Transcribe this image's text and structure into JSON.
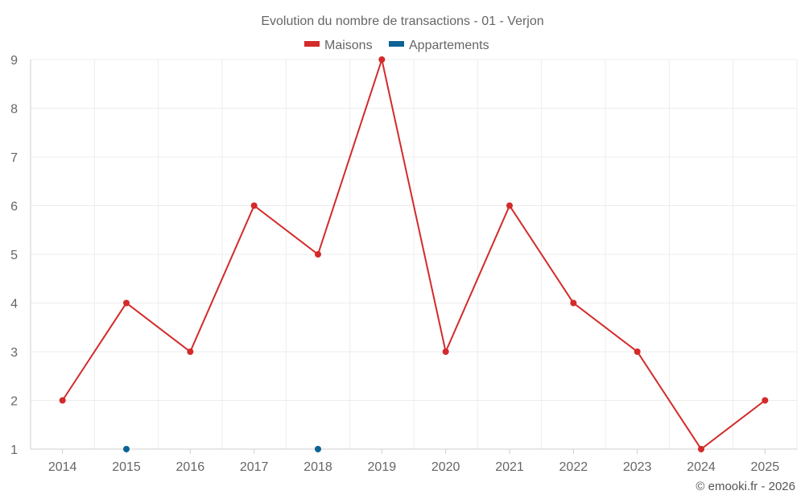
{
  "chart_data": {
    "type": "line",
    "title": "Evolution du nombre de transactions - 01 - Verjon",
    "categories": [
      "2014",
      "2015",
      "2016",
      "2017",
      "2018",
      "2019",
      "2020",
      "2021",
      "2022",
      "2023",
      "2024",
      "2025"
    ],
    "series": [
      {
        "name": "Maisons",
        "color": "#d32a2a",
        "values": [
          2,
          4,
          3,
          6,
          5,
          9,
          3,
          6,
          4,
          3,
          1,
          2
        ]
      },
      {
        "name": "Appartements",
        "color": "#0d6296",
        "values": [
          null,
          1,
          null,
          null,
          1,
          null,
          null,
          null,
          null,
          null,
          null,
          null
        ]
      }
    ],
    "yticks": [
      1,
      2,
      3,
      4,
      5,
      6,
      7,
      8,
      9
    ],
    "ylim": [
      1,
      9
    ],
    "grid": true,
    "legend_position": "top-center"
  },
  "credit": "© emooki.fr - 2026"
}
